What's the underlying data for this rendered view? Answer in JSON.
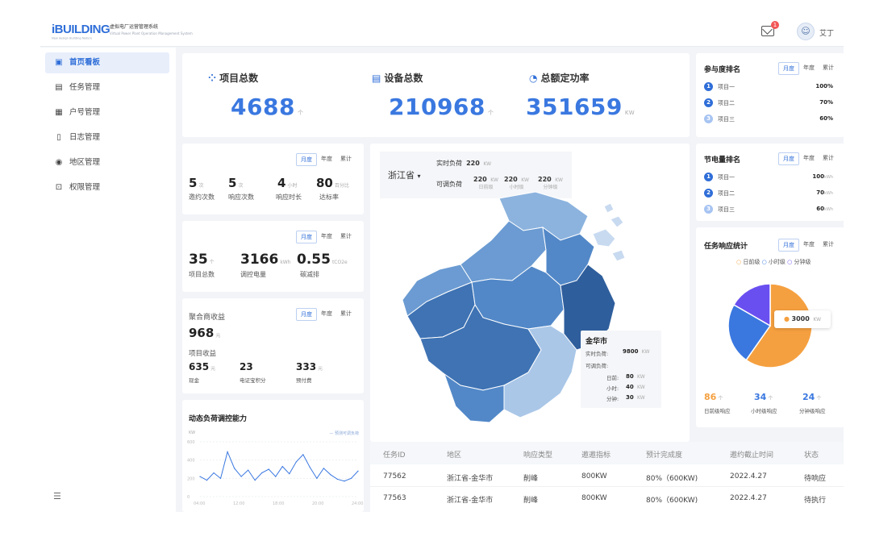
{
  "header": {
    "logo": "iBUILDING",
    "logo_sub": "New design Building Nature",
    "app_title": "虚拟电厂运营管理系统",
    "app_title_sub": "Virtual Power Plant Operation Management System",
    "mail_badge": "1",
    "avatar_icon": "avatar-icon",
    "user": "艾丁"
  },
  "sidebar": {
    "items": [
      {
        "label": "首页看板",
        "icon": "dashboard-icon",
        "active": true
      },
      {
        "label": "任务管理",
        "icon": "task-icon"
      },
      {
        "label": "户号管理",
        "icon": "account-icon"
      },
      {
        "label": "日志管理",
        "icon": "log-icon"
      },
      {
        "label": "地区管理",
        "icon": "location-icon"
      },
      {
        "label": "权限管理",
        "icon": "permission-icon"
      }
    ],
    "collapse_icon": "menu-collapse-icon"
  },
  "kpis": [
    {
      "title": "项目总数",
      "value": "4688",
      "unit": "个",
      "icon": "grid-icon"
    },
    {
      "title": "设备总数",
      "value": "210968",
      "unit": "个",
      "icon": "device-icon"
    },
    {
      "title": "总额定功率",
      "value": "351659",
      "unit": "KW",
      "icon": "gauge-icon"
    }
  ],
  "period_tabs": [
    "月度",
    "年度",
    "累计"
  ],
  "invite": {
    "items": [
      {
        "value": "5",
        "unit": "次",
        "label": "邀约次数"
      },
      {
        "value": "5",
        "unit": "次",
        "label": "响应次数"
      },
      {
        "value": "4",
        "unit": "小时",
        "label": "响应时长"
      },
      {
        "value": "80",
        "unit": "百分比",
        "label": "达标率"
      }
    ]
  },
  "energy": {
    "items": [
      {
        "value": "35",
        "unit": "个",
        "label": "项目总数"
      },
      {
        "value": "3166",
        "unit": "kWh",
        "label": "调控电量"
      },
      {
        "value": "0.55",
        "unit": "tCO2e",
        "label": "碳减排"
      }
    ]
  },
  "revenue": {
    "title": "聚合商收益",
    "total": "968",
    "total_unit": "元",
    "sub_title": "项目收益",
    "items": [
      {
        "value": "635",
        "unit": "元",
        "label": "现金"
      },
      {
        "value": "23",
        "unit": "",
        "label": "电证宝积分"
      },
      {
        "value": "333",
        "unit": "元",
        "label": "预付费"
      }
    ]
  },
  "dyn": {
    "title": "动态负荷调控能力",
    "legend": "预测可调负荷",
    "ylabel": "KW"
  },
  "chart_data": {
    "type": "line",
    "x": [
      "04:00",
      "04:48",
      "05:36",
      "06:24",
      "07:12",
      "08:00",
      "08:48",
      "09:36",
      "10:24",
      "11:12",
      "12:00",
      "12:48",
      "13:36",
      "14:24",
      "15:12",
      "16:00",
      "16:48",
      "17:36",
      "18:24",
      "19:12",
      "20:00",
      "20:48",
      "21:36",
      "22:24"
    ],
    "xticks": [
      "04:00",
      "12:00",
      "18:00",
      "20:00",
      "24:00"
    ],
    "series": [
      {
        "name": "预测可调负荷",
        "values": [
          220,
          180,
          260,
          200,
          490,
          310,
          220,
          290,
          180,
          260,
          300,
          220,
          330,
          250,
          380,
          460,
          320,
          200,
          310,
          240,
          190,
          170,
          200,
          280
        ]
      }
    ],
    "yticks": [
      "0",
      "200",
      "400",
      "600"
    ],
    "ylim": [
      0,
      600
    ]
  },
  "map": {
    "province": "浙江省",
    "rt_label": "实时负荷",
    "rt_value": "220",
    "rt_unit": "KW",
    "adj_label": "可调负荷",
    "adj": [
      {
        "value": "220",
        "unit": "KW",
        "label": "日前级"
      },
      {
        "value": "220",
        "unit": "KW",
        "label": "小时级"
      },
      {
        "value": "220",
        "unit": "KW",
        "label": "分钟级"
      }
    ],
    "tooltip": {
      "city": "金华市",
      "rt_label": "实时负荷:",
      "rt_value": "9800",
      "rt_unit": "KW",
      "adj_label": "可调负荷:",
      "rows": [
        {
          "label": "日前:",
          "value": "80",
          "unit": "KW"
        },
        {
          "label": "小时:",
          "value": "40",
          "unit": "KW"
        },
        {
          "label": "分钟:",
          "value": "30",
          "unit": "KW"
        }
      ]
    },
    "colors": [
      "#2f5e9c",
      "#3f73b4",
      "#5288c8",
      "#6b9bd2",
      "#8cb3de",
      "#aac7e8",
      "#c8daf0"
    ]
  },
  "table": {
    "headers": [
      "任务ID",
      "地区",
      "响应类型",
      "邀邀指标",
      "预计完成度",
      "邀约截止时间",
      "状态"
    ],
    "rows": [
      [
        "77562",
        "浙江省-金华市",
        "削峰",
        "800KW",
        "80%（600KW)",
        "2022.4.27",
        "待响应"
      ],
      [
        "77563",
        "浙江省-金华市",
        "削峰",
        "800KW",
        "80%（600KW)",
        "2022.4.27",
        "待执行"
      ]
    ]
  },
  "participation": {
    "title": "参与度排名",
    "rows": [
      {
        "rank": "1",
        "name": "项目一",
        "value": "100%"
      },
      {
        "rank": "2",
        "name": "项目二",
        "value": "70%"
      },
      {
        "rank": "3",
        "name": "项目三",
        "value": "60%"
      }
    ]
  },
  "saving": {
    "title": "节电量排名",
    "rows": [
      {
        "rank": "1",
        "name": "项目一",
        "value": "100",
        "unit": "kWh"
      },
      {
        "rank": "2",
        "name": "项目二",
        "value": "70",
        "unit": "kWh"
      },
      {
        "rank": "3",
        "name": "项目三",
        "value": "60",
        "unit": "kWh"
      }
    ]
  },
  "resp": {
    "title": "任务响应统计",
    "legend": [
      {
        "name": "日前级",
        "color": "#f5a040"
      },
      {
        "name": "小时级",
        "color": "#3a78e0"
      },
      {
        "name": "分钟级",
        "color": "#6a4ff0"
      }
    ],
    "pie": [
      {
        "name": "日前级",
        "value": 86,
        "color": "#f5a040"
      },
      {
        "name": "小时级",
        "value": 34,
        "color": "#3a78e0"
      },
      {
        "name": "分钟级",
        "value": 24,
        "color": "#6a4ff0"
      }
    ],
    "pie_label": "3000",
    "pie_label_unit": "KW",
    "stats": [
      {
        "value": "86",
        "unit": "个",
        "label": "日前级响应",
        "color": "#f5a040"
      },
      {
        "value": "34",
        "unit": "个",
        "label": "小时级响应",
        "color": "#3a78e0"
      },
      {
        "value": "24",
        "unit": "个",
        "label": "分钟级响应",
        "color": "#3a78e0"
      }
    ]
  }
}
